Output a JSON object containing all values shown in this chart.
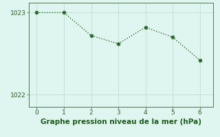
{
  "x": [
    0,
    1,
    2,
    3,
    4,
    5,
    6
  ],
  "y": [
    1023.0,
    1023.0,
    1022.72,
    1022.62,
    1022.82,
    1022.7,
    1022.42
  ],
  "line_color": "#2d6a2d",
  "marker_color": "#2d6a2d",
  "background_color": "#dff5ef",
  "grid_color": "#c0ddd6",
  "xlabel": "Graphe pression niveau de la mer (hPa)",
  "xlabel_color": "#1a5c1a",
  "ylim": [
    1021.85,
    1023.12
  ],
  "xlim": [
    -0.3,
    6.5
  ],
  "yticks": [
    1022,
    1023
  ],
  "xticks": [
    0,
    1,
    2,
    3,
    4,
    5,
    6
  ],
  "line_width": 1.0,
  "marker_size": 3.5,
  "tick_fontsize": 6.5,
  "xlabel_fontsize": 7.5
}
